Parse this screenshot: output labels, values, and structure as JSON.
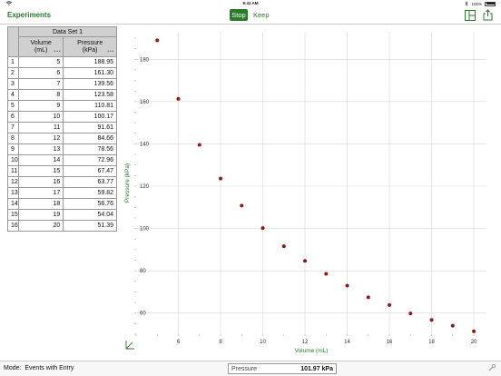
{
  "status_bar": {
    "time": "9:41 AM",
    "battery": "100%"
  },
  "nav": {
    "back_label": "Experiments",
    "stop_label": "Stop",
    "keep_label": "Keep"
  },
  "table": {
    "dataset_name": "Data Set 1",
    "columns": [
      {
        "name": "Volume",
        "unit": "(mL)"
      },
      {
        "name": "Pressure",
        "unit": "(kPa)"
      }
    ],
    "rows": [
      [
        "1",
        "5",
        "188.95"
      ],
      [
        "2",
        "6",
        "161.30"
      ],
      [
        "3",
        "7",
        "139.56"
      ],
      [
        "4",
        "8",
        "123.58"
      ],
      [
        "5",
        "9",
        "110.81"
      ],
      [
        "6",
        "10",
        "100.17"
      ],
      [
        "7",
        "11",
        "91.61"
      ],
      [
        "8",
        "12",
        "84.66"
      ],
      [
        "9",
        "13",
        "78.56"
      ],
      [
        "10",
        "14",
        "72.96"
      ],
      [
        "11",
        "15",
        "67.47"
      ],
      [
        "12",
        "16",
        "63.77"
      ],
      [
        "13",
        "17",
        "59.82"
      ],
      [
        "14",
        "18",
        "56.76"
      ],
      [
        "15",
        "19",
        "54.04"
      ],
      [
        "16",
        "20",
        "51.39"
      ]
    ]
  },
  "chart_data": {
    "type": "scatter",
    "xlabel": "Volume (mL)",
    "ylabel": "Pressure (kPa)",
    "xlim": [
      4,
      20.6
    ],
    "ylim": [
      50,
      193
    ],
    "xticks": [
      6,
      8,
      10,
      12,
      14,
      16,
      18,
      20
    ],
    "yticks": [
      60,
      80,
      100,
      120,
      140,
      160,
      180
    ],
    "grid": true,
    "marker_color": "#8b1a1a",
    "x": [
      5,
      6,
      7,
      8,
      9,
      10,
      11,
      12,
      13,
      14,
      15,
      16,
      17,
      18,
      19,
      20
    ],
    "y": [
      188.95,
      161.3,
      139.56,
      123.58,
      110.81,
      100.17,
      91.61,
      84.66,
      78.56,
      72.96,
      67.47,
      63.77,
      59.82,
      56.76,
      54.04,
      51.39
    ]
  },
  "footer": {
    "mode_label": "Mode:",
    "mode_value": "Events with Entry",
    "meter_label": "Pressure",
    "meter_value": "101.97 kPa"
  },
  "colors": {
    "accent": "#2b7a2b"
  }
}
